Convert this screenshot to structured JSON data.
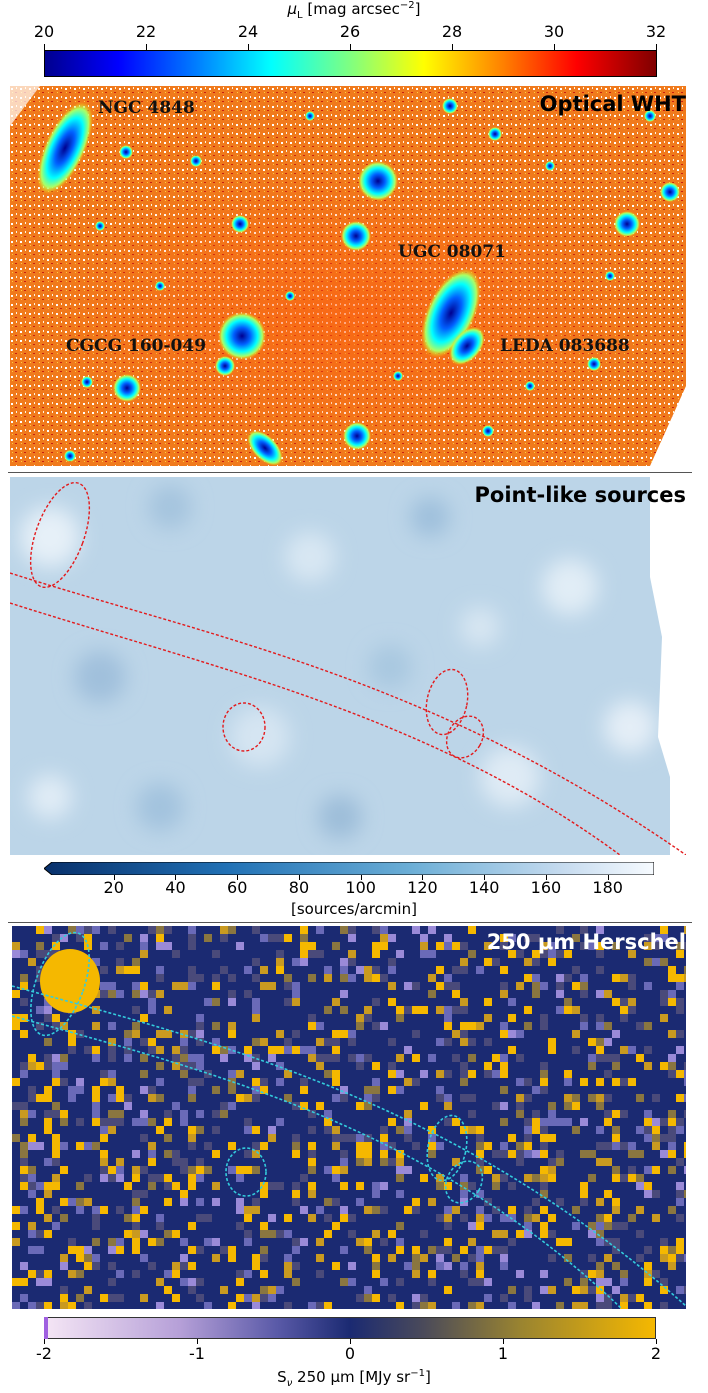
{
  "top_colorbar": {
    "label_prefix": "μ",
    "label_sub": "L",
    "label_text": " [mag arcsec",
    "label_sup": "−2",
    "label_close": "]",
    "ticks": [
      "20",
      "22",
      "24",
      "26",
      "28",
      "30",
      "32"
    ],
    "range": [
      20,
      32
    ],
    "colormap": "jet"
  },
  "panel_optical": {
    "title": "Optical WHT",
    "labels": [
      "NGC 4848",
      "UGC 08071",
      "CGCG 160-049",
      "LEDA 083688"
    ]
  },
  "panel_points": {
    "title": "Point-like sources"
  },
  "mid_colorbar": {
    "ticks": [
      "20",
      "40",
      "60",
      "80",
      "100",
      "120",
      "140",
      "160",
      "180"
    ],
    "range": [
      0,
      195
    ],
    "label": "[sources/arcmin]",
    "colormap": "Blues_r"
  },
  "panel_herschel": {
    "title": "250 μm Herschel"
  },
  "bottom_colorbar": {
    "ticks": [
      "-2",
      "-1",
      "0",
      "1",
      "2"
    ],
    "range": [
      -2,
      2
    ],
    "label_prefix": "S",
    "label_sub": "ν",
    "label_text": " 250 μm [MJy sr",
    "label_sup": "−1",
    "label_close": "]"
  },
  "colors": {
    "contour_panel2": "#e31a1c",
    "contour_panel3": "#33ccdd",
    "herschel_bg": "#1b2a72",
    "herschel_bright": "#f5b800"
  }
}
